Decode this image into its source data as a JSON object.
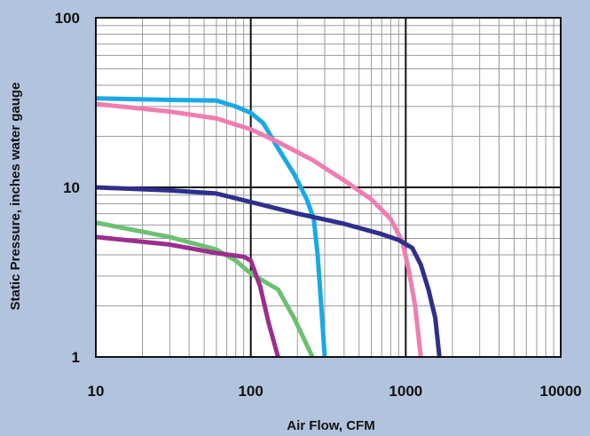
{
  "colors": {
    "background": "#b2c3de",
    "plot_area": "#ffffff",
    "minor_grid": "#9a9a9a",
    "major_grid": "#111111",
    "cyan": "#1aa9e3",
    "pink": "#f07db0",
    "navy": "#2e2f8c",
    "green": "#6cc072",
    "purple": "#9b2f8d"
  },
  "chart_data": {
    "type": "line",
    "title": "",
    "xlabel": "Air Flow, CFM",
    "ylabel": "Static Pressure, inches water gauge",
    "x_scale": "log",
    "y_scale": "log",
    "xlim": [
      10,
      10000
    ],
    "ylim": [
      1,
      100
    ],
    "x_ticks": [
      10,
      100,
      1000,
      10000
    ],
    "x_tick_labels": [
      "10",
      "100",
      "1000",
      "10000"
    ],
    "y_ticks": [
      1,
      10,
      100
    ],
    "y_tick_labels": [
      "1",
      "10",
      "100"
    ],
    "grid": true,
    "legend": "none",
    "series": [
      {
        "color": "cyan",
        "points": [
          [
            10,
            33.5
          ],
          [
            30,
            32.8
          ],
          [
            60,
            32.5
          ],
          [
            80,
            30
          ],
          [
            100,
            27.5
          ],
          [
            120,
            24
          ],
          [
            150,
            17
          ],
          [
            190,
            12
          ],
          [
            230,
            8.5
          ],
          [
            255,
            6.5
          ],
          [
            270,
            4
          ],
          [
            285,
            2
          ],
          [
            300,
            1
          ]
        ]
      },
      {
        "color": "pink",
        "points": [
          [
            10,
            31
          ],
          [
            30,
            28
          ],
          [
            60,
            25.5
          ],
          [
            100,
            22
          ],
          [
            150,
            18.5
          ],
          [
            250,
            14.5
          ],
          [
            400,
            11
          ],
          [
            600,
            8.5
          ],
          [
            800,
            6.5
          ],
          [
            950,
            4.8
          ],
          [
            1050,
            3.2
          ],
          [
            1150,
            2
          ],
          [
            1250,
            1
          ]
        ]
      },
      {
        "color": "navy",
        "points": [
          [
            10,
            10
          ],
          [
            30,
            9.6
          ],
          [
            60,
            9.2
          ],
          [
            100,
            8.2
          ],
          [
            200,
            7.0
          ],
          [
            400,
            6.1
          ],
          [
            700,
            5.3
          ],
          [
            900,
            4.9
          ],
          [
            1100,
            4.4
          ],
          [
            1250,
            3.5
          ],
          [
            1400,
            2.5
          ],
          [
            1550,
            1.7
          ],
          [
            1650,
            1
          ]
        ]
      },
      {
        "color": "green",
        "points": [
          [
            10,
            6.2
          ],
          [
            30,
            5.1
          ],
          [
            60,
            4.3
          ],
          [
            80,
            3.7
          ],
          [
            100,
            3.1
          ],
          [
            150,
            2.5
          ],
          [
            190,
            1.7
          ],
          [
            250,
            1
          ]
        ]
      },
      {
        "color": "purple",
        "points": [
          [
            10,
            5.1
          ],
          [
            30,
            4.6
          ],
          [
            60,
            4.1
          ],
          [
            90,
            3.9
          ],
          [
            100,
            3.7
          ],
          [
            115,
            2.6
          ],
          [
            130,
            1.6
          ],
          [
            150,
            1
          ]
        ]
      }
    ]
  }
}
